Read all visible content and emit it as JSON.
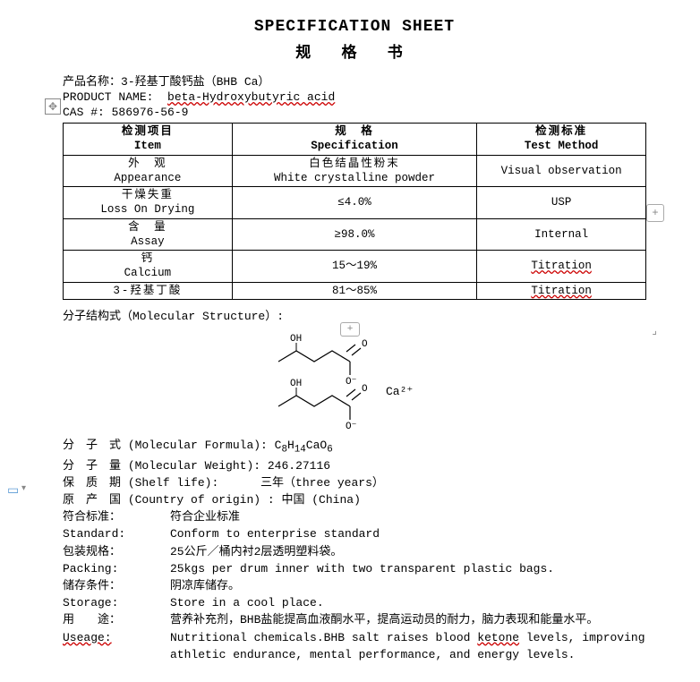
{
  "titles": {
    "en": "SPECIFICATION SHEET",
    "cn": "规 格 书"
  },
  "header": {
    "product_cn_label": "产品名称：",
    "product_cn_value": "3-羟基丁酸钙盐（BHB Ca）",
    "product_en_label": "PRODUCT NAME:",
    "product_en_value": "beta-Hydroxybutyric acid",
    "cas_label": "CAS #:",
    "cas_value": "586976-56-9"
  },
  "table": {
    "head": {
      "c1_cn": "检测项目",
      "c1_en": "Item",
      "c2_cn": "规　格",
      "c2_en": "Specification",
      "c3_cn": "检测标准",
      "c3_en": "Test Method"
    },
    "rows": [
      {
        "c1_cn": "外　观",
        "c1_en": "Appearance",
        "c2_cn": "白色结晶性粉末",
        "c2_en": "White crystalline powder",
        "c3": "Visual observation",
        "c3_wavy": false
      },
      {
        "c1_cn": "干燥失重",
        "c1_en": "Loss On Drying",
        "c2": "≤4.0%",
        "c3": "USP",
        "c3_wavy": false
      },
      {
        "c1_cn": "含　量",
        "c1_en": "Assay",
        "c2": "≥98.0%",
        "c3": "Internal",
        "c3_wavy": false
      },
      {
        "c1_cn": "钙",
        "c1_en": "Calcium",
        "c2": "15～19%",
        "c3": "Titration",
        "c3_wavy": true
      },
      {
        "c1_cn": "3-羟基丁酸",
        "c1_en": "",
        "c2": "81～85%",
        "c3": "Titration",
        "c3_wavy": true
      }
    ]
  },
  "mol_label": "分子结构式（Molecular Structure）:",
  "info": [
    {
      "cn": "分　子　式",
      "en": "(Molecular Formula):",
      "val_html": "C<sub>8</sub>H<sub>14</sub>CaO<sub>6</sub>"
    },
    {
      "cn": "分　子　量",
      "en": "(Molecular Weight):",
      "val": "246.27116"
    },
    {
      "cn": "保　质　期",
      "en": "(Shelf life):",
      "val": "　　　三年（three years）"
    },
    {
      "cn": "原　产　国",
      "en": "(Country of origin) :",
      "val": "中国 (China)"
    }
  ],
  "pairs": [
    {
      "cn_label": "符合标准：",
      "cn_val": "符合企业标准",
      "en_label": "Standard:",
      "en_val": "Conform to enterprise standard"
    },
    {
      "cn_label": "包装规格：",
      "cn_val": "25公斤／桶内衬2层透明塑料袋。",
      "en_label": "Packing:",
      "en_val": "25kgs per drum inner with two transparent plastic bags."
    },
    {
      "cn_label": "储存条件：",
      "cn_val": "阴凉库储存。",
      "en_label": "Storage:",
      "en_val": "Store in a cool place."
    },
    {
      "cn_label": "用　　途：",
      "cn_val": "营养补充剂，BHB盐能提高血液酮水平，提高运动员的耐力，脑力表现和能量水平。",
      "en_label": "Useage:",
      "en_val": "Nutritional chemicals.BHB salt raises blood ketone levels, improving",
      "en_val2": "athletic endurance, mental performance, and energy levels."
    }
  ],
  "chem": {
    "oh": "OH",
    "o": "O",
    "ominus": "O⁻",
    "ca": "Ca²⁺"
  }
}
